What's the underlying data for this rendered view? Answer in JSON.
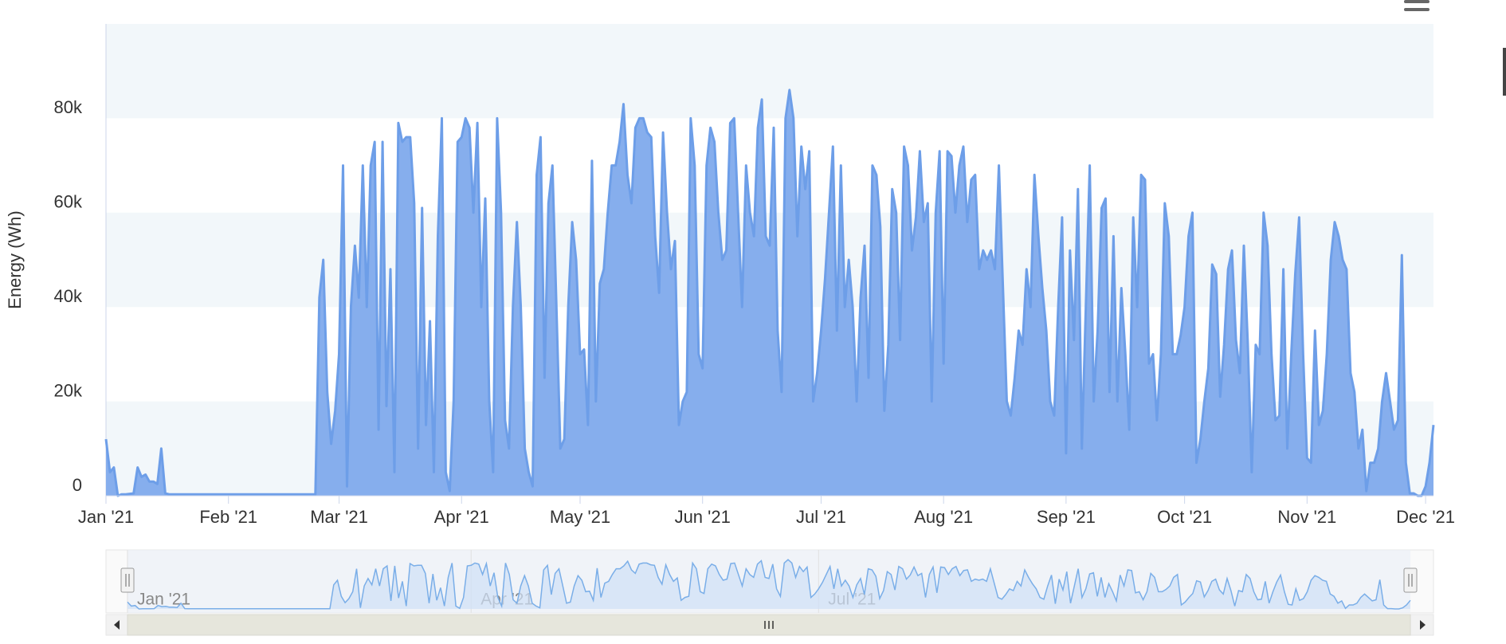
{
  "chart_data": {
    "type": "area",
    "y_axis_label": "Energy (Wh)",
    "ylim": [
      0,
      100000
    ],
    "yticks": [
      0,
      {
        "value": 20000,
        "label": "20k"
      },
      {
        "value": 40000,
        "label": "40k"
      },
      {
        "value": 60000,
        "label": "60k"
      },
      {
        "value": 80000,
        "label": "80k"
      }
    ],
    "alternate_grid_color": "#f2f7fa",
    "xlim": [
      0,
      336
    ],
    "xticks": [
      {
        "value": 0,
        "label": "Jan '21"
      },
      {
        "value": 31,
        "label": "Feb '21"
      },
      {
        "value": 59,
        "label": "Mar '21"
      },
      {
        "value": 90,
        "label": "Apr '21"
      },
      {
        "value": 120,
        "label": "May '21"
      },
      {
        "value": 151,
        "label": "Jun '21"
      },
      {
        "value": 181,
        "label": "Jul '21"
      },
      {
        "value": 212,
        "label": "Aug '21"
      },
      {
        "value": 243,
        "label": "Sep '21"
      },
      {
        "value": 273,
        "label": "Oct '21"
      },
      {
        "value": 304,
        "label": "Nov '21"
      },
      {
        "value": 334,
        "label": "Dec '21"
      }
    ],
    "navigator_xticks": [
      {
        "value": 0,
        "label": "Jan '21"
      },
      {
        "value": 90,
        "label": "Apr '21"
      },
      {
        "value": 181,
        "label": "Jul '21"
      }
    ],
    "series": [
      {
        "color": "#6d9ee8",
        "fill": "#86aeed",
        "values": [
          12000,
          5000,
          6000,
          0,
          300,
          300,
          400,
          500,
          6000,
          4000,
          4500,
          3000,
          3000,
          2500,
          10000,
          500,
          300,
          300,
          300,
          300,
          300,
          300,
          300,
          300,
          300,
          300,
          300,
          300,
          300,
          300,
          300,
          300,
          300,
          300,
          300,
          300,
          300,
          300,
          300,
          300,
          300,
          300,
          300,
          300,
          300,
          300,
          300,
          300,
          300,
          300,
          300,
          300,
          300,
          300,
          42000,
          50000,
          22000,
          11000,
          18000,
          30000,
          70000,
          2000,
          40000,
          53000,
          42000,
          70000,
          40000,
          70000,
          75000,
          14000,
          75000,
          19000,
          48000,
          5000,
          79000,
          75000,
          76000,
          76000,
          62000,
          10000,
          61000,
          15000,
          37000,
          5000,
          55000,
          80000,
          5000,
          1000,
          20000,
          75000,
          76000,
          80000,
          78000,
          60000,
          79000,
          40000,
          63000,
          20000,
          5000,
          80000,
          60000,
          16000,
          10000,
          40000,
          58000,
          40000,
          10000,
          5000,
          2000,
          68000,
          76000,
          25000,
          62000,
          70000,
          40000,
          10000,
          12000,
          40000,
          58000,
          50000,
          30000,
          31000,
          15000,
          71000,
          20000,
          45000,
          48000,
          60000,
          70000,
          70000,
          75000,
          83000,
          68000,
          62000,
          78000,
          80000,
          80000,
          77000,
          76000,
          55000,
          43000,
          77000,
          60000,
          48000,
          54000,
          15000,
          20000,
          22000,
          80000,
          70000,
          30000,
          27000,
          70000,
          78000,
          75000,
          60000,
          50000,
          52000,
          79000,
          80000,
          60000,
          40000,
          70000,
          60000,
          55000,
          78000,
          84000,
          55000,
          53000,
          78000,
          35000,
          22000,
          80000,
          86000,
          80000,
          55000,
          74000,
          65000,
          73000,
          20000,
          26000,
          35000,
          46000,
          60000,
          74000,
          35000,
          70000,
          40000,
          50000,
          40000,
          20000,
          42000,
          53000,
          25000,
          70000,
          68000,
          57000,
          18000,
          32000,
          65000,
          60000,
          33000,
          74000,
          70000,
          52000,
          59000,
          73000,
          58000,
          62000,
          20000,
          60000,
          73000,
          28000,
          73000,
          72000,
          60000,
          70000,
          74000,
          58000,
          67000,
          68000,
          48000,
          52000,
          50000,
          52000,
          48000,
          70000,
          45000,
          20000,
          17000,
          25000,
          35000,
          32000,
          48000,
          40000,
          68000,
          55000,
          44000,
          35000,
          20000,
          17000,
          40000,
          59000,
          9000,
          52000,
          33000,
          65000,
          10000,
          40000,
          70000,
          20000,
          35000,
          61000,
          63000,
          22000,
          55000,
          20000,
          44000,
          30000,
          14000,
          59000,
          40000,
          68000,
          67000,
          28000,
          30000,
          16000,
          30000,
          62000,
          55000,
          30000,
          30000,
          34000,
          40000,
          55000,
          60000,
          7000,
          12000,
          20000,
          27000,
          49000,
          47000,
          21000,
          32000,
          48000,
          52000,
          33000,
          26000,
          53000,
          32000,
          5000,
          32000,
          30000,
          60000,
          53000,
          30000,
          16000,
          17000,
          48000,
          10000,
          30000,
          47000,
          59000,
          30000,
          8000,
          7000,
          35000,
          15000,
          18000,
          30000,
          50000,
          58000,
          55000,
          50000,
          48000,
          26000,
          22000,
          10000,
          14000,
          1000,
          7000,
          7000,
          10000,
          20000,
          26000,
          20000,
          14000,
          16000,
          51000,
          7000,
          500,
          500,
          0,
          0,
          2000,
          7000,
          15000
        ]
      }
    ]
  }
}
